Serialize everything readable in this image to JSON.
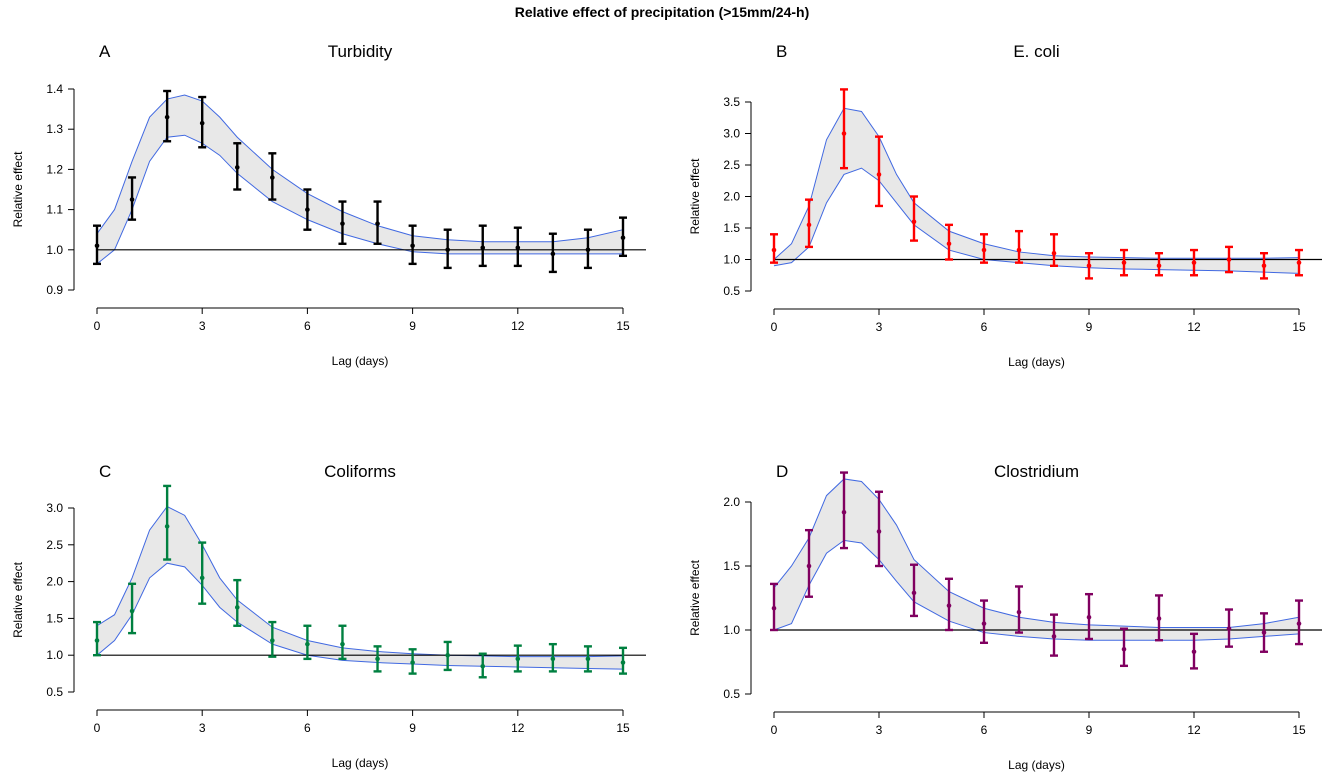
{
  "figure_title": "Relative effect of precipitation (>15mm/24-h)",
  "colors": {
    "band_fill": "#e8e8e8",
    "band_line": "#4169e1",
    "reference_line": "#000000"
  },
  "chart_data": [
    {
      "panel": "A",
      "title": "Turbidity",
      "type": "line",
      "xlabel": "Lag (days)",
      "ylabel": "Relative effect",
      "xlim": [
        0,
        15
      ],
      "ylim": [
        0.9,
        1.4
      ],
      "xticks": [
        0,
        3,
        6,
        9,
        12,
        15
      ],
      "yticks": [
        0.9,
        1.0,
        1.1,
        1.2,
        1.3,
        1.4
      ],
      "reference_y": 1.0,
      "color": "#000000",
      "points": {
        "x": [
          0,
          1,
          2,
          3,
          4,
          5,
          6,
          7,
          8,
          9,
          10,
          11,
          12,
          13,
          14,
          15
        ],
        "y": [
          1.01,
          1.125,
          1.33,
          1.315,
          1.205,
          1.18,
          1.1,
          1.065,
          1.065,
          1.01,
          1.0,
          1.005,
          1.005,
          0.99,
          1.0,
          1.03
        ],
        "lower": [
          0.965,
          1.075,
          1.27,
          1.255,
          1.15,
          1.125,
          1.05,
          1.015,
          1.015,
          0.965,
          0.955,
          0.96,
          0.96,
          0.945,
          0.955,
          0.985
        ],
        "upper": [
          1.06,
          1.18,
          1.395,
          1.38,
          1.265,
          1.24,
          1.15,
          1.12,
          1.12,
          1.06,
          1.05,
          1.06,
          1.055,
          1.04,
          1.05,
          1.08
        ]
      },
      "band": {
        "x": [
          0,
          0.5,
          1,
          1.5,
          2,
          2.5,
          3,
          3.5,
          4,
          5,
          6,
          7,
          8,
          9,
          10,
          11,
          12,
          13,
          14,
          15
        ],
        "lower": [
          0.965,
          1.0,
          1.1,
          1.22,
          1.28,
          1.285,
          1.265,
          1.235,
          1.19,
          1.12,
          1.075,
          1.04,
          1.015,
          0.995,
          0.99,
          0.99,
          0.99,
          0.99,
          0.99,
          0.99
        ],
        "upper": [
          1.04,
          1.1,
          1.22,
          1.33,
          1.375,
          1.385,
          1.37,
          1.33,
          1.28,
          1.2,
          1.14,
          1.095,
          1.06,
          1.035,
          1.025,
          1.02,
          1.02,
          1.02,
          1.03,
          1.05
        ]
      }
    },
    {
      "panel": "B",
      "title": "E. coli",
      "type": "line",
      "xlabel": "Lag (days)",
      "ylabel": "Relative effect",
      "xlim": [
        0,
        15
      ],
      "ylim": [
        0.5,
        3.5
      ],
      "xticks": [
        0,
        3,
        6,
        9,
        12,
        15
      ],
      "yticks": [
        0.5,
        1.0,
        1.5,
        2.0,
        2.5,
        3.0,
        3.5
      ],
      "reference_y": 1.0,
      "color": "#ff0000",
      "points": {
        "x": [
          0,
          1,
          2,
          3,
          4,
          5,
          6,
          7,
          8,
          9,
          10,
          11,
          12,
          13,
          14,
          15
        ],
        "y": [
          1.15,
          1.55,
          3.0,
          2.35,
          1.6,
          1.25,
          1.15,
          1.15,
          1.1,
          0.9,
          0.95,
          0.9,
          0.95,
          1.0,
          0.9,
          0.95
        ],
        "lower": [
          0.95,
          1.2,
          2.45,
          1.85,
          1.3,
          1.0,
          0.95,
          0.95,
          0.9,
          0.7,
          0.75,
          0.75,
          0.75,
          0.8,
          0.7,
          0.75
        ],
        "upper": [
          1.4,
          1.95,
          3.7,
          2.95,
          2.0,
          1.55,
          1.4,
          1.45,
          1.4,
          1.1,
          1.15,
          1.1,
          1.15,
          1.2,
          1.1,
          1.15
        ]
      },
      "band": {
        "x": [
          0,
          0.5,
          1,
          1.5,
          2,
          2.5,
          3,
          3.5,
          4,
          5,
          6,
          7,
          8,
          9,
          10,
          11,
          12,
          13,
          14,
          15
        ],
        "lower": [
          0.9,
          0.95,
          1.2,
          1.9,
          2.35,
          2.45,
          2.25,
          1.9,
          1.55,
          1.15,
          1.0,
          0.95,
          0.9,
          0.87,
          0.85,
          0.84,
          0.83,
          0.82,
          0.8,
          0.78
        ],
        "upper": [
          1.0,
          1.25,
          1.85,
          2.9,
          3.4,
          3.35,
          2.95,
          2.35,
          1.9,
          1.45,
          1.25,
          1.12,
          1.06,
          1.04,
          1.03,
          1.02,
          1.02,
          1.02,
          1.02,
          1.03
        ]
      }
    },
    {
      "panel": "C",
      "title": "Coliforms",
      "type": "line",
      "xlabel": "Lag (days)",
      "ylabel": "Relative effect",
      "xlim": [
        0,
        15
      ],
      "ylim": [
        0.5,
        3.0
      ],
      "xticks": [
        0,
        3,
        6,
        9,
        12,
        15
      ],
      "yticks": [
        0.5,
        1.0,
        1.5,
        2.0,
        2.5,
        3.0
      ],
      "reference_y": 1.0,
      "color": "#008040",
      "points": {
        "x": [
          0,
          1,
          2,
          3,
          4,
          5,
          6,
          7,
          8,
          9,
          10,
          11,
          12,
          13,
          14,
          15
        ],
        "y": [
          1.2,
          1.6,
          2.75,
          2.05,
          1.65,
          1.2,
          1.15,
          1.15,
          0.95,
          0.9,
          1.0,
          0.85,
          0.95,
          0.95,
          0.95,
          0.9
        ],
        "lower": [
          1.0,
          1.3,
          2.3,
          1.7,
          1.4,
          0.98,
          0.95,
          0.95,
          0.78,
          0.75,
          0.8,
          0.7,
          0.78,
          0.78,
          0.78,
          0.75
        ],
        "upper": [
          1.45,
          1.97,
          3.3,
          2.53,
          2.02,
          1.45,
          1.4,
          1.4,
          1.12,
          1.08,
          1.18,
          1.02,
          1.13,
          1.15,
          1.12,
          1.1
        ]
      },
      "band": {
        "x": [
          0,
          0.5,
          1,
          1.5,
          2,
          2.5,
          3,
          3.5,
          4,
          5,
          6,
          7,
          8,
          9,
          10,
          11,
          12,
          13,
          14,
          15
        ],
        "lower": [
          1.0,
          1.2,
          1.55,
          2.05,
          2.25,
          2.2,
          1.95,
          1.65,
          1.45,
          1.15,
          1.0,
          0.93,
          0.9,
          0.88,
          0.86,
          0.85,
          0.84,
          0.83,
          0.82,
          0.81
        ],
        "upper": [
          1.4,
          1.55,
          2.05,
          2.7,
          3.02,
          2.9,
          2.5,
          2.05,
          1.75,
          1.38,
          1.2,
          1.1,
          1.05,
          1.02,
          1.0,
          0.99,
          0.98,
          0.98,
          0.98,
          0.99
        ]
      }
    },
    {
      "panel": "D",
      "title": "Clostridium",
      "type": "line",
      "xlabel": "Lag (days)",
      "ylabel": "Relative effect",
      "xlim": [
        0,
        15
      ],
      "ylim": [
        0.5,
        2.0
      ],
      "xticks": [
        0,
        3,
        6,
        9,
        12,
        15
      ],
      "yticks": [
        0.5,
        1.0,
        1.5,
        2.0
      ],
      "reference_y": 1.0,
      "color": "#800060",
      "points": {
        "x": [
          0,
          1,
          2,
          3,
          4,
          5,
          6,
          7,
          8,
          9,
          10,
          11,
          12,
          13,
          14,
          15
        ],
        "y": [
          1.17,
          1.5,
          1.92,
          1.77,
          1.29,
          1.19,
          1.05,
          1.14,
          0.95,
          1.1,
          0.85,
          1.09,
          0.83,
          1.01,
          0.98,
          1.05
        ],
        "lower": [
          1.0,
          1.26,
          1.64,
          1.5,
          1.11,
          1.0,
          0.9,
          0.98,
          0.8,
          0.93,
          0.72,
          0.92,
          0.7,
          0.87,
          0.83,
          0.89
        ],
        "upper": [
          1.36,
          1.78,
          2.23,
          2.08,
          1.51,
          1.4,
          1.23,
          1.34,
          1.12,
          1.28,
          1.01,
          1.27,
          0.97,
          1.16,
          1.13,
          1.23
        ]
      },
      "band": {
        "x": [
          0,
          0.5,
          1,
          1.5,
          2,
          2.5,
          3,
          3.5,
          4,
          5,
          6,
          7,
          8,
          9,
          10,
          11,
          12,
          13,
          14,
          15
        ],
        "lower": [
          1.0,
          1.05,
          1.35,
          1.6,
          1.7,
          1.68,
          1.55,
          1.38,
          1.22,
          1.07,
          0.98,
          0.95,
          0.93,
          0.92,
          0.92,
          0.92,
          0.92,
          0.93,
          0.95,
          0.97
        ],
        "upper": [
          1.33,
          1.5,
          1.72,
          2.05,
          2.18,
          2.16,
          2.02,
          1.82,
          1.55,
          1.3,
          1.17,
          1.1,
          1.06,
          1.04,
          1.03,
          1.02,
          1.02,
          1.02,
          1.05,
          1.1
        ]
      }
    }
  ]
}
